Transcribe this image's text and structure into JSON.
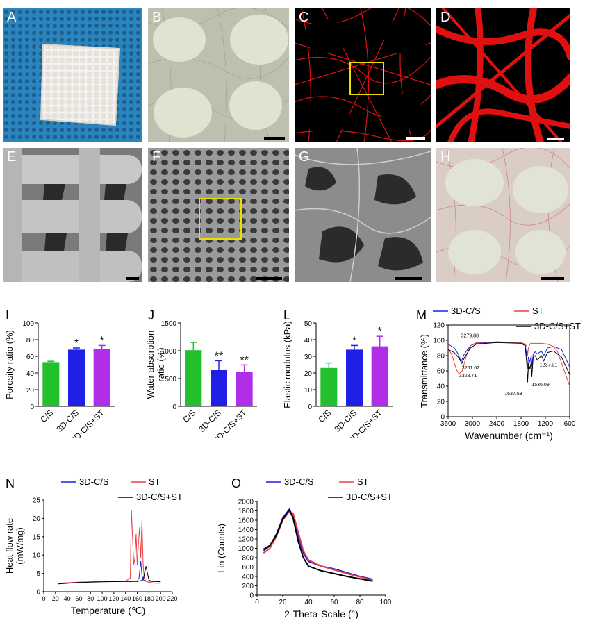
{
  "photo_panels": [
    {
      "label": "A"
    },
    {
      "label": "B"
    },
    {
      "label": "C"
    },
    {
      "label": "D"
    },
    {
      "label": "E"
    },
    {
      "label": "F"
    },
    {
      "label": "G"
    },
    {
      "label": "H"
    }
  ],
  "colors": {
    "green": "#22c02c",
    "blue": "#1f1fe8",
    "purple": "#b12ee8",
    "red": "#e84040",
    "black": "#000000",
    "yellow": "#e8e000"
  },
  "chart_data": [
    {
      "id": "I",
      "type": "bar",
      "ylabel": "Porosity ratio (%)",
      "ylim": [
        0,
        100
      ],
      "yticks": [
        "0",
        "20",
        "40",
        "60",
        "80",
        "100"
      ],
      "categories": [
        "C/S",
        "3D-C/S",
        "3D-C/S+ST"
      ],
      "values": [
        53,
        68,
        69
      ],
      "errors": [
        1,
        2,
        4
      ],
      "sig": [
        "",
        "*",
        "*"
      ]
    },
    {
      "id": "J",
      "type": "bar",
      "ylabel": "Water absorption ratio (%)",
      "ylabel_lines": [
        "Water absorption",
        "ratio (%)"
      ],
      "ylim": [
        0,
        1500
      ],
      "yticks": [
        "0",
        "500",
        "1000",
        "1500"
      ],
      "categories": [
        "C/S",
        "3D-C/S",
        "3D-C/S+ST"
      ],
      "values": [
        1010,
        650,
        615
      ],
      "errors": [
        140,
        170,
        130
      ],
      "sig": [
        "",
        "**",
        "**"
      ]
    },
    {
      "id": "L",
      "type": "bar",
      "ylabel": "Elastic modulus (kPa)",
      "ylim": [
        0,
        50
      ],
      "yticks": [
        "0",
        "10",
        "20",
        "30",
        "40",
        "50"
      ],
      "categories": [
        "C/S",
        "3D-C/S",
        "3D-C/S+ST"
      ],
      "values": [
        23,
        34,
        36
      ],
      "errors": [
        3,
        2.5,
        6
      ],
      "sig": [
        "",
        "*",
        "*"
      ]
    },
    {
      "id": "M",
      "type": "line",
      "xlabel": "Wavenumber (cm⁻¹)",
      "ylabel": "Transmittance (%)",
      "xlim": [
        3600,
        600
      ],
      "ylim": [
        0,
        120
      ],
      "xticks": [
        "3600",
        "3000",
        "2400",
        "1800",
        "1200",
        "600"
      ],
      "yticks": [
        "0",
        "20",
        "40",
        "60",
        "80",
        "100",
        "120"
      ],
      "legend": [
        "3D-C/S",
        "ST",
        "3D-C/S+ST"
      ],
      "annotations": [
        "3279.88",
        "3261.62",
        "3328.71",
        "1637.53",
        "1536.09",
        "1237.91"
      ],
      "series": [
        {
          "name": "3D-C/S",
          "x": [
            3600,
            3450,
            3350,
            3280,
            3200,
            3050,
            2900,
            2400,
            1800,
            1700,
            1660,
            1640,
            1620,
            1580,
            1550,
            1536,
            1500,
            1450,
            1400,
            1300,
            1240,
            1150,
            1000,
            800,
            600
          ],
          "y": [
            95,
            90,
            82,
            72,
            82,
            93,
            96,
            98,
            97,
            95,
            80,
            62,
            78,
            72,
            80,
            66,
            82,
            85,
            82,
            86,
            80,
            90,
            92,
            88,
            65
          ]
        },
        {
          "name": "ST",
          "x": [
            3600,
            3500,
            3400,
            3330,
            3250,
            3150,
            3050,
            2900,
            2400,
            1800,
            1700,
            1660,
            1640,
            1620,
            1580,
            1560,
            1500,
            1300,
            1150,
            1000,
            900,
            800,
            700,
            600
          ],
          "y": [
            90,
            80,
            62,
            56,
            60,
            80,
            93,
            97,
            98,
            97,
            95,
            92,
            80,
            90,
            95,
            96,
            96,
            96,
            95,
            92,
            85,
            70,
            55,
            40
          ]
        },
        {
          "name": "3D-C/S+ST",
          "x": [
            3600,
            3450,
            3350,
            3262,
            3200,
            3050,
            2900,
            2400,
            1800,
            1700,
            1660,
            1638,
            1615,
            1580,
            1550,
            1536,
            1500,
            1450,
            1400,
            1300,
            1238,
            1150,
            1000,
            800,
            600
          ],
          "y": [
            88,
            84,
            78,
            70,
            77,
            90,
            95,
            97,
            96,
            93,
            70,
            45,
            70,
            62,
            72,
            52,
            78,
            80,
            74,
            80,
            73,
            84,
            86,
            78,
            55
          ]
        }
      ]
    },
    {
      "id": "N",
      "type": "line",
      "xlabel": "Temperature (℃)",
      "ylabel": "Heat flow rate (mW/mg)",
      "ylabel_lines": [
        "Heat flow rate",
        "(mW/mg)"
      ],
      "xlim": [
        0,
        220
      ],
      "ylim": [
        -2,
        25
      ],
      "xticks": [
        "0",
        "20",
        "40",
        "60",
        "80",
        "100",
        "120",
        "140",
        "160",
        "180",
        "200",
        "220"
      ],
      "yticks": [
        "0",
        "5",
        "10",
        "15",
        "20",
        "25"
      ],
      "legend": [
        "3D-C/S",
        "ST",
        "3D-C/S+ST"
      ],
      "series": [
        {
          "name": "3D-C/S",
          "x": [
            25,
            60,
            100,
            140,
            150,
            155,
            160,
            163,
            166,
            168,
            170,
            175,
            180,
            190,
            200
          ],
          "y": [
            0.5,
            0.8,
            1.0,
            1.0,
            1.0,
            1.1,
            1.2,
            2,
            7,
            3,
            1.5,
            1.2,
            1.1,
            1.0,
            1.0
          ]
        },
        {
          "name": "ST",
          "x": [
            25,
            60,
            100,
            140,
            148,
            150,
            152,
            154,
            156,
            158,
            160,
            162,
            164,
            166,
            168,
            170,
            172,
            175,
            180,
            190,
            200
          ],
          "y": [
            0.5,
            0.8,
            1.0,
            1.1,
            2,
            22,
            14,
            6,
            8,
            15,
            6,
            12,
            17,
            8,
            19,
            6,
            2,
            1,
            0.8,
            0.5,
            0.5
          ]
        },
        {
          "name": "3D-C/S+ST",
          "x": [
            25,
            60,
            100,
            140,
            160,
            165,
            170,
            172,
            175,
            178,
            180,
            185,
            190,
            200
          ],
          "y": [
            0.3,
            0.7,
            0.9,
            1.0,
            1.0,
            1.2,
            1.5,
            3,
            5.5,
            3,
            1.5,
            1.0,
            1.0,
            0.9
          ]
        }
      ]
    },
    {
      "id": "O",
      "type": "line",
      "xlabel": "2-Theta-Scale (°)",
      "ylabel": "Lin (Counts)",
      "xlim": [
        0,
        100
      ],
      "ylim": [
        0,
        2000
      ],
      "xticks": [
        "0",
        "20",
        "40",
        "60",
        "80",
        "100"
      ],
      "yticks": [
        "0",
        "200",
        "400",
        "600",
        "800",
        "1000",
        "1200",
        "1400",
        "1600",
        "1800",
        "2000"
      ],
      "legend": [
        "3D-C/S",
        "ST",
        "3D-C/S+ST"
      ],
      "series": [
        {
          "name": "3D-C/S",
          "x": [
            5,
            10,
            15,
            20,
            25,
            28,
            32,
            36,
            40,
            50,
            60,
            70,
            80,
            90
          ],
          "y": [
            950,
            1050,
            1300,
            1650,
            1830,
            1700,
            1250,
            900,
            720,
            620,
            560,
            480,
            400,
            340
          ]
        },
        {
          "name": "ST",
          "x": [
            5,
            10,
            15,
            20,
            25,
            28,
            32,
            36,
            40,
            50,
            60,
            70,
            80,
            90
          ],
          "y": [
            900,
            1000,
            1250,
            1600,
            1780,
            1750,
            1350,
            950,
            750,
            620,
            540,
            460,
            390,
            320
          ]
        },
        {
          "name": "3D-C/S+ST",
          "x": [
            5,
            10,
            15,
            20,
            25,
            28,
            32,
            36,
            40,
            50,
            60,
            70,
            80,
            90
          ],
          "y": [
            980,
            1060,
            1280,
            1620,
            1820,
            1650,
            1150,
            800,
            620,
            520,
            460,
            400,
            350,
            300
          ]
        }
      ]
    }
  ]
}
